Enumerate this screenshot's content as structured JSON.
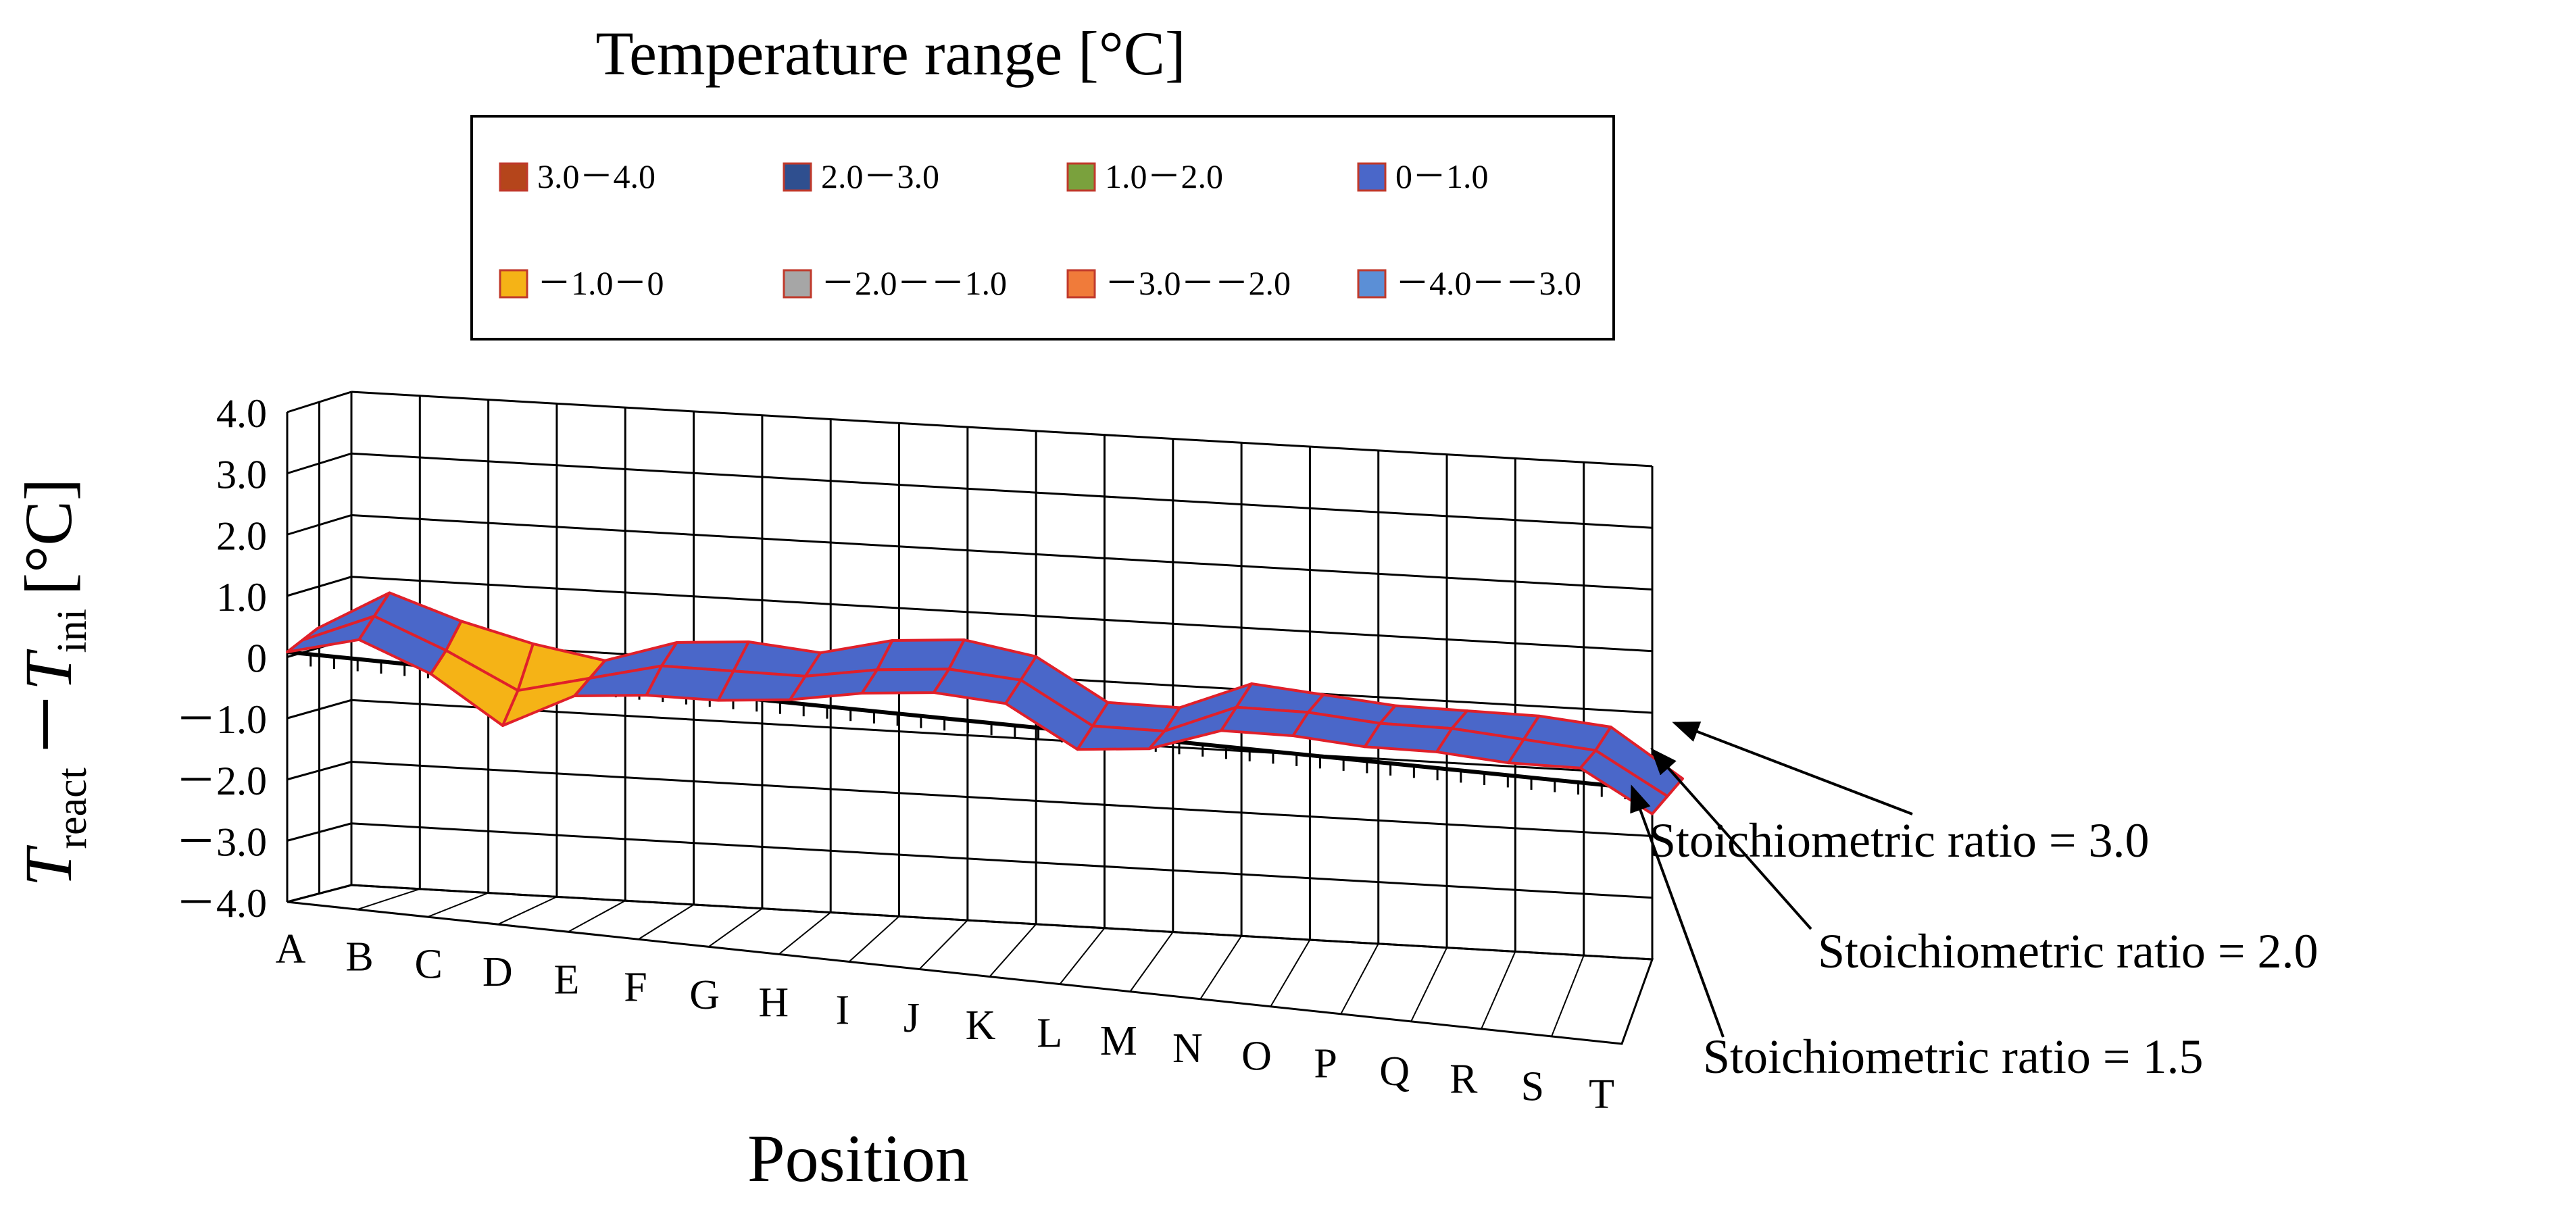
{
  "chart_data": {
    "type": "surface",
    "legend_title": "Temperature range [°C]",
    "legend": [
      {
        "label": "3.0－4.0",
        "color": "#b5451b"
      },
      {
        "label": "2.0－3.0",
        "color": "#2f4f8f"
      },
      {
        "label": "1.0－2.0",
        "color": "#7aa13d"
      },
      {
        "label": "0－1.0",
        "color": "#4a67c9"
      },
      {
        "label": "－1.0－0",
        "color": "#f5b316"
      },
      {
        "label": "－2.0－－1.0",
        "color": "#a6a6a6"
      },
      {
        "label": "－3.0－－2.0",
        "color": "#f07b3a"
      },
      {
        "label": "－4.0－－3.0",
        "color": "#5b8fd6"
      }
    ],
    "ylabel": {
      "main": "T",
      "sub1": "react",
      "minus": "－",
      "main2": "T",
      "sub2": "ini",
      "unit": "[°C]"
    },
    "xlabel": "Position",
    "ylim": [
      -4.0,
      4.0
    ],
    "yticks": [
      "4.0",
      "3.0",
      "2.0",
      "1.0",
      "0",
      "－1.0",
      "－2.0",
      "－3.0",
      "－4.0"
    ],
    "categories": [
      "A",
      "B",
      "C",
      "D",
      "E",
      "F",
      "G",
      "H",
      "I",
      "J",
      "K",
      "L",
      "M",
      "N",
      "O",
      "P",
      "Q",
      "R",
      "S",
      "T"
    ],
    "series": [
      {
        "name": "Stoichiometric ratio = 1.5",
        "values": [
          0.0,
          0.3,
          -0.2,
          -1.0,
          -0.4,
          -0.3,
          -0.3,
          -0.2,
          0.0,
          0.1,
          0.0,
          -0.7,
          -0.6,
          -0.2,
          -0.2,
          -0.3,
          -0.3,
          -0.4,
          -0.4,
          -1.1
        ]
      },
      {
        "name": "Stoichiometric ratio = 2.0",
        "values": [
          0.0,
          0.5,
          0.0,
          -0.6,
          -0.3,
          0.0,
          0.0,
          0.0,
          0.2,
          0.3,
          0.2,
          -0.5,
          -0.5,
          0.0,
          0.0,
          -0.1,
          -0.1,
          -0.2,
          -0.3,
          -1.0
        ]
      },
      {
        "name": "Stoichiometric ratio = 3.0",
        "values": [
          0.0,
          0.7,
          0.3,
          0.0,
          -0.2,
          0.2,
          0.3,
          0.2,
          0.5,
          0.6,
          0.4,
          -0.3,
          -0.3,
          0.2,
          0.1,
          0.0,
          0.0,
          0.0,
          -0.1,
          -0.9
        ]
      }
    ],
    "annotations": [
      "Stoichiometric ratio = 3.0",
      "Stoichiometric ratio = 2.0",
      "Stoichiometric ratio = 1.5"
    ]
  }
}
